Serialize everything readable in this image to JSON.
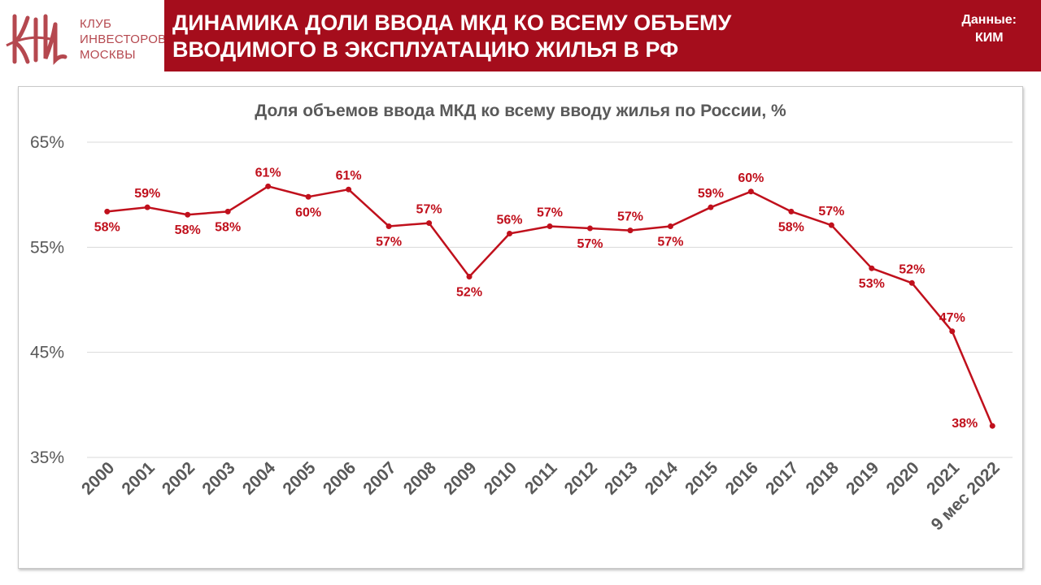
{
  "brand": {
    "logo_lines": [
      "КЛУБ",
      "ИНВЕСТОРОВ",
      "МОСКВЫ"
    ],
    "logo_icon": "kim-monogram-icon",
    "logo_color": "#b5484f"
  },
  "header": {
    "title_lines": [
      "ДИНАМИКА ДОЛИ ВВОДА МКД КО ВСЕМУ ОБЪЕМУ",
      "ВВОДИМОГО В ЭКСПЛУАТАЦИЮ ЖИЛЬЯ В РФ"
    ],
    "source_lines": [
      "Данные:",
      "КИМ"
    ],
    "background_color": "#a50d1c"
  },
  "chart_data": {
    "type": "line",
    "title": "Доля объемов ввода МКД ко всему вводу жилья по России,  %",
    "categories": [
      "2000",
      "2001",
      "2002",
      "2003",
      "2004",
      "2005",
      "2006",
      "2007",
      "2008",
      "2009",
      "2010",
      "2011",
      "2012",
      "2013",
      "2014",
      "2015",
      "2016",
      "2017",
      "2018",
      "2019",
      "2020",
      "2021",
      "9 мес 2022"
    ],
    "series": [
      {
        "values": [
          58.4,
          58.8,
          58.1,
          58.4,
          60.8,
          59.8,
          60.5,
          57.0,
          57.3,
          52.2,
          56.3,
          57.0,
          56.8,
          56.6,
          57.0,
          58.8,
          60.3,
          58.4,
          57.1,
          53.0,
          51.6,
          47.0,
          38.0
        ],
        "labels": [
          "58%",
          "59%",
          "58%",
          "58%",
          "61%",
          "60%",
          "61%",
          "57%",
          "57%",
          "52%",
          "56%",
          "57%",
          "57%",
          "57%",
          "57%",
          "59%",
          "60%",
          "58%",
          "57%",
          "53%",
          "52%",
          "47%",
          "38%"
        ],
        "label_position": [
          "below",
          "above",
          "below",
          "below",
          "above",
          "below",
          "above",
          "below",
          "above",
          "below",
          "above",
          "above",
          "below",
          "above",
          "below",
          "above",
          "above",
          "below",
          "above",
          "below",
          "above",
          "above",
          "left"
        ],
        "color": "#c0101c"
      }
    ],
    "ylim": [
      35,
      65
    ],
    "y_ticks": [
      35,
      45,
      55,
      65
    ],
    "y_tick_labels": [
      "35%",
      "45%",
      "55%",
      "65%"
    ],
    "xlabel": "",
    "ylabel": "",
    "grid": true,
    "legend": "none"
  }
}
